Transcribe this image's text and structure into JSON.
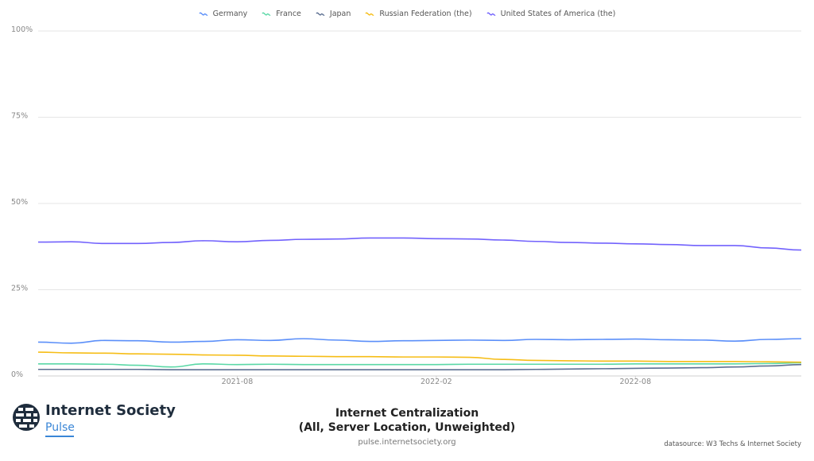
{
  "chart_data": {
    "type": "line",
    "title": "Internet Centralization",
    "subtitle": "(All, Server Location, Unweighted)",
    "xlabel": "",
    "ylabel": "",
    "ylim": [
      0,
      100
    ],
    "y_ticks": [
      "0%",
      "25%",
      "50%",
      "75%",
      "100%"
    ],
    "x_ticks": [
      "2021-08",
      "2022-02",
      "2022-08"
    ],
    "x_range": [
      "2021-02",
      "2023-01"
    ],
    "legend_position": "top-center",
    "grid": true,
    "series": [
      {
        "name": "Germany",
        "color": "#5b8ff9",
        "x": [
          "2021-02",
          "2021-03",
          "2021-04",
          "2021-05",
          "2021-06",
          "2021-07",
          "2021-08",
          "2021-09",
          "2021-10",
          "2021-11",
          "2021-12",
          "2022-01",
          "2022-02",
          "2022-03",
          "2022-04",
          "2022-05",
          "2022-06",
          "2022-07",
          "2022-08",
          "2022-09",
          "2022-10",
          "2022-11",
          "2022-12",
          "2023-01"
        ],
        "values": [
          9.8,
          9.5,
          10.3,
          10.2,
          9.8,
          10.0,
          10.5,
          10.3,
          10.8,
          10.4,
          10.0,
          10.2,
          10.3,
          10.4,
          10.3,
          10.6,
          10.5,
          10.6,
          10.7,
          10.5,
          10.4,
          10.1,
          10.6,
          10.8
        ]
      },
      {
        "name": "France",
        "color": "#5ad8a6",
        "x": [
          "2021-02",
          "2021-03",
          "2021-04",
          "2021-05",
          "2021-06",
          "2021-07",
          "2021-08",
          "2021-09",
          "2021-10",
          "2021-11",
          "2021-12",
          "2022-01",
          "2022-02",
          "2022-03",
          "2022-04",
          "2022-05",
          "2022-06",
          "2022-07",
          "2022-08",
          "2022-09",
          "2022-10",
          "2022-11",
          "2022-12",
          "2023-01"
        ],
        "values": [
          3.5,
          3.5,
          3.4,
          3.1,
          2.6,
          3.5,
          3.3,
          3.4,
          3.3,
          3.3,
          3.3,
          3.3,
          3.3,
          3.4,
          3.4,
          3.4,
          3.4,
          3.4,
          3.5,
          3.5,
          3.5,
          3.5,
          3.6,
          3.8
        ]
      },
      {
        "name": "Japan",
        "color": "#5d7092",
        "x": [
          "2021-02",
          "2021-03",
          "2021-04",
          "2021-05",
          "2021-06",
          "2021-07",
          "2021-08",
          "2021-09",
          "2021-10",
          "2021-11",
          "2021-12",
          "2022-01",
          "2022-02",
          "2022-03",
          "2022-04",
          "2022-05",
          "2022-06",
          "2022-07",
          "2022-08",
          "2022-09",
          "2022-10",
          "2022-11",
          "2022-12",
          "2023-01"
        ],
        "values": [
          1.9,
          1.9,
          1.9,
          1.9,
          1.8,
          1.8,
          1.8,
          1.8,
          1.8,
          1.8,
          1.8,
          1.8,
          1.8,
          1.8,
          1.8,
          1.9,
          2.0,
          2.1,
          2.2,
          2.3,
          2.4,
          2.6,
          2.9,
          3.3
        ]
      },
      {
        "name": "Russian Federation (the)",
        "color": "#f6bd16",
        "x": [
          "2021-02",
          "2021-03",
          "2021-04",
          "2021-05",
          "2021-06",
          "2021-07",
          "2021-08",
          "2021-09",
          "2021-10",
          "2021-11",
          "2021-12",
          "2022-01",
          "2022-02",
          "2022-03",
          "2022-04",
          "2022-05",
          "2022-06",
          "2022-07",
          "2022-08",
          "2022-09",
          "2022-10",
          "2022-11",
          "2022-12",
          "2023-01"
        ],
        "values": [
          6.9,
          6.7,
          6.6,
          6.4,
          6.3,
          6.1,
          6.0,
          5.8,
          5.7,
          5.6,
          5.6,
          5.5,
          5.5,
          5.4,
          4.8,
          4.5,
          4.4,
          4.3,
          4.3,
          4.2,
          4.2,
          4.2,
          4.1,
          4.0
        ]
      },
      {
        "name": "United States of America (the)",
        "color": "#7262fd",
        "x": [
          "2021-02",
          "2021-03",
          "2021-04",
          "2021-05",
          "2021-06",
          "2021-07",
          "2021-08",
          "2021-09",
          "2021-10",
          "2021-11",
          "2021-12",
          "2022-01",
          "2022-02",
          "2022-03",
          "2022-04",
          "2022-05",
          "2022-06",
          "2022-07",
          "2022-08",
          "2022-09",
          "2022-10",
          "2022-11",
          "2022-12",
          "2023-01"
        ],
        "values": [
          38.8,
          38.9,
          38.4,
          38.4,
          38.7,
          39.2,
          38.9,
          39.3,
          39.6,
          39.7,
          40.0,
          40.0,
          39.8,
          39.7,
          39.4,
          39.0,
          38.7,
          38.5,
          38.3,
          38.1,
          37.8,
          37.8,
          37.1,
          36.5
        ]
      }
    ]
  },
  "brand": {
    "name": "Internet Society",
    "sub": "Pulse",
    "logo_icon": "internet-society-logo-icon"
  },
  "footer": {
    "url": "pulse.internetsociety.org",
    "source": "datasource: W3 Techs & Internet Society"
  }
}
